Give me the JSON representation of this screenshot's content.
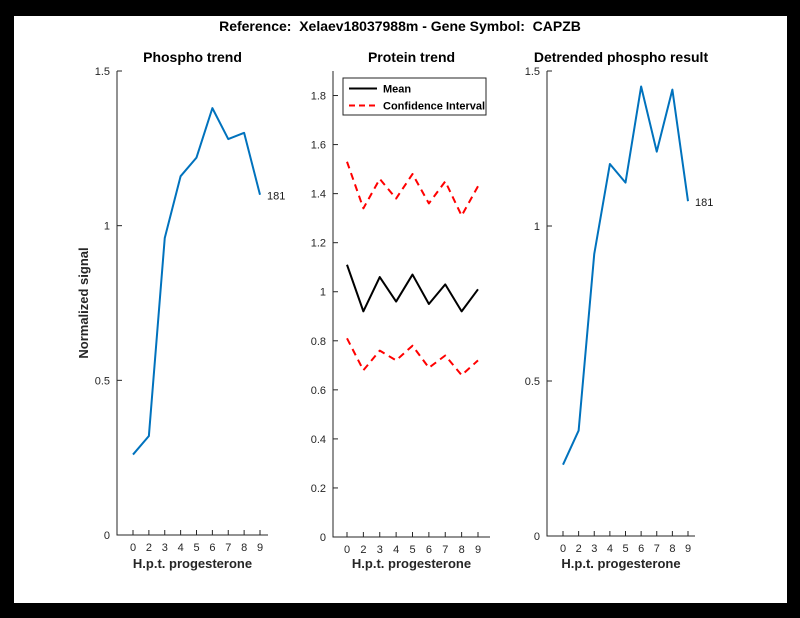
{
  "figure": {
    "title": "Reference:  Xelaev18037988m - Gene Symbol:  CAPZB",
    "background_color": "#000000",
    "canvas_color": "#ffffff"
  },
  "colors": {
    "series_blue": "#0072BD",
    "series_red": "#FF0000",
    "series_black": "#000000",
    "axis": "#262626",
    "tick_text": "#262626",
    "title_text": "#000000"
  },
  "chart_data": [
    {
      "id": "phospho-trend",
      "type": "line",
      "title": "Phospho trend",
      "xlabel": "H.p.t. progesterone",
      "ylabel": "Normalized signal",
      "categories": [
        "0",
        "2",
        "3",
        "4",
        "5",
        "6",
        "7",
        "8",
        "9"
      ],
      "ylim": [
        0,
        1.5
      ],
      "yticks": [
        0,
        0.5,
        1,
        1.5
      ],
      "ytick_labels": [
        "0",
        "0.5",
        "1",
        "1.5"
      ],
      "grid": false,
      "series": [
        {
          "name": "phospho-signal",
          "color": "#0072BD",
          "style": "solid",
          "values": [
            0.26,
            0.32,
            0.96,
            1.16,
            1.22,
            1.38,
            1.28,
            1.3,
            1.1
          ]
        }
      ],
      "end_label": "181"
    },
    {
      "id": "protein-trend",
      "type": "line",
      "title": "Protein trend",
      "xlabel": "H.p.t. progesterone",
      "ylabel": "",
      "categories": [
        "0",
        "2",
        "3",
        "4",
        "5",
        "6",
        "7",
        "8",
        "9"
      ],
      "ylim": [
        0,
        1.9
      ],
      "yticks": [
        0,
        0.2,
        0.4,
        0.6,
        0.8,
        1,
        1.2,
        1.4,
        1.6,
        1.8
      ],
      "ytick_labels": [
        "0",
        "0.2",
        "0.4",
        "0.6",
        "0.8",
        "1",
        "1.2",
        "1.4",
        "1.6",
        "1.8"
      ],
      "grid": false,
      "series": [
        {
          "name": "mean",
          "color": "#000000",
          "style": "solid",
          "values": [
            1.11,
            0.92,
            1.06,
            0.96,
            1.07,
            0.95,
            1.03,
            0.92,
            1.01
          ]
        },
        {
          "name": "confidence-interval-upper",
          "color": "#FF0000",
          "style": "dashed",
          "values": [
            1.53,
            1.34,
            1.46,
            1.38,
            1.48,
            1.36,
            1.45,
            1.31,
            1.43
          ]
        },
        {
          "name": "confidence-interval-lower",
          "color": "#FF0000",
          "style": "dashed",
          "values": [
            0.81,
            0.68,
            0.76,
            0.72,
            0.78,
            0.69,
            0.74,
            0.66,
            0.72
          ]
        }
      ],
      "legend": {
        "position": "top-left",
        "entries": [
          {
            "label": "Mean",
            "color": "#000000",
            "style": "solid"
          },
          {
            "label": "Confidence Interval",
            "color": "#FF0000",
            "style": "dashed"
          }
        ]
      }
    },
    {
      "id": "detrended-phospho-result",
      "type": "line",
      "title": "Detrended phospho result",
      "xlabel": "H.p.t. progesterone",
      "ylabel": "",
      "categories": [
        "0",
        "2",
        "3",
        "4",
        "5",
        "6",
        "7",
        "8",
        "9"
      ],
      "ylim": [
        0,
        1.5
      ],
      "yticks": [
        0,
        0.5,
        1,
        1.5
      ],
      "ytick_labels": [
        "0",
        "0.5",
        "1",
        "1.5"
      ],
      "grid": false,
      "series": [
        {
          "name": "detrended-phospho-signal",
          "color": "#0072BD",
          "style": "solid",
          "values": [
            0.23,
            0.34,
            0.91,
            1.2,
            1.14,
            1.45,
            1.24,
            1.44,
            1.08
          ]
        }
      ],
      "end_label": "181"
    }
  ]
}
